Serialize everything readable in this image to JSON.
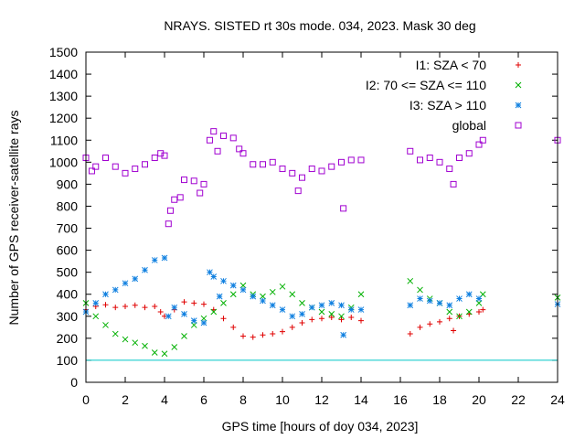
{
  "chart_data": {
    "type": "scatter",
    "title": "NRAYS. SISTED rt 30s mode. 034, 2023. Mask 30 deg",
    "xlabel": "GPS time [hours of doy 034, 2023]",
    "ylabel": "Number of GPS receiver-satellite rays",
    "xlim": [
      0,
      24
    ],
    "ylim": [
      0,
      1500
    ],
    "xticks": [
      0,
      2,
      4,
      6,
      8,
      10,
      12,
      14,
      16,
      18,
      20,
      22,
      24
    ],
    "yticks": [
      0,
      100,
      200,
      300,
      400,
      500,
      600,
      700,
      800,
      900,
      1000,
      1100,
      1200,
      1300,
      1400,
      1500
    ],
    "threshold_line": {
      "y": 100,
      "color": "#00c8c8"
    },
    "legend_position": "top-right",
    "series": [
      {
        "name": "I1: SZA < 70",
        "marker": "+",
        "color": "#e00000",
        "points": [
          [
            0,
            330
          ],
          [
            0.5,
            345
          ],
          [
            1,
            352
          ],
          [
            1.5,
            340
          ],
          [
            2,
            345
          ],
          [
            2.5,
            350
          ],
          [
            3,
            340
          ],
          [
            3.5,
            345
          ],
          [
            3.8,
            320
          ],
          [
            4,
            300
          ],
          [
            4.5,
            330
          ],
          [
            5,
            365
          ],
          [
            5.5,
            360
          ],
          [
            6,
            355
          ],
          [
            6.5,
            330
          ],
          [
            7,
            290
          ],
          [
            7.5,
            250
          ],
          [
            8,
            210
          ],
          [
            8.5,
            205
          ],
          [
            9,
            215
          ],
          [
            9.5,
            220
          ],
          [
            10,
            230
          ],
          [
            10.5,
            250
          ],
          [
            11,
            270
          ],
          [
            11.5,
            285
          ],
          [
            12,
            290
          ],
          [
            12.5,
            295
          ],
          [
            13,
            285
          ],
          [
            13.5,
            295
          ],
          [
            14,
            280
          ],
          [
            16.5,
            220
          ],
          [
            17,
            250
          ],
          [
            17.5,
            265
          ],
          [
            18,
            275
          ],
          [
            18.5,
            290
          ],
          [
            18.7,
            235
          ],
          [
            19,
            300
          ],
          [
            19.5,
            310
          ],
          [
            20,
            320
          ],
          [
            20.2,
            330
          ]
        ]
      },
      {
        "name": "I2: 70 <= SZA <= 110",
        "marker": "x",
        "color": "#00b000",
        "points": [
          [
            0,
            360
          ],
          [
            0.5,
            300
          ],
          [
            1,
            260
          ],
          [
            1.5,
            220
          ],
          [
            2,
            195
          ],
          [
            2.5,
            180
          ],
          [
            3,
            165
          ],
          [
            3.5,
            135
          ],
          [
            4,
            130
          ],
          [
            4.5,
            160
          ],
          [
            5,
            210
          ],
          [
            5.5,
            260
          ],
          [
            6,
            290
          ],
          [
            6.5,
            320
          ],
          [
            7,
            360
          ],
          [
            7.5,
            400
          ],
          [
            8,
            440
          ],
          [
            8.5,
            400
          ],
          [
            9,
            390
          ],
          [
            9.5,
            410
          ],
          [
            10,
            435
          ],
          [
            10.5,
            400
          ],
          [
            11,
            360
          ],
          [
            11.5,
            340
          ],
          [
            12,
            320
          ],
          [
            12.5,
            310
          ],
          [
            13,
            300
          ],
          [
            13.5,
            340
          ],
          [
            14,
            400
          ],
          [
            16.5,
            460
          ],
          [
            17,
            420
          ],
          [
            17.5,
            380
          ],
          [
            18,
            360
          ],
          [
            18.5,
            320
          ],
          [
            19,
            300
          ],
          [
            19.5,
            320
          ],
          [
            20,
            360
          ],
          [
            20.2,
            400
          ],
          [
            24,
            385
          ]
        ]
      },
      {
        "name": "I3: SZA > 110",
        "marker": "*",
        "color": "#1080e0",
        "points": [
          [
            0,
            320
          ],
          [
            0.5,
            360
          ],
          [
            1,
            400
          ],
          [
            1.5,
            420
          ],
          [
            2,
            450
          ],
          [
            2.5,
            470
          ],
          [
            3,
            510
          ],
          [
            3.5,
            555
          ],
          [
            4,
            565
          ],
          [
            4.2,
            300
          ],
          [
            4.5,
            340
          ],
          [
            5,
            310
          ],
          [
            5.5,
            280
          ],
          [
            6,
            270
          ],
          [
            6.3,
            500
          ],
          [
            6.5,
            480
          ],
          [
            6.8,
            390
          ],
          [
            7,
            460
          ],
          [
            7.5,
            440
          ],
          [
            8,
            420
          ],
          [
            8.5,
            390
          ],
          [
            9,
            370
          ],
          [
            9.5,
            350
          ],
          [
            10,
            330
          ],
          [
            10.5,
            300
          ],
          [
            11,
            310
          ],
          [
            11.5,
            340
          ],
          [
            12,
            350
          ],
          [
            12.5,
            360
          ],
          [
            13,
            350
          ],
          [
            13.1,
            215
          ],
          [
            13.5,
            330
          ],
          [
            14,
            330
          ],
          [
            16.5,
            350
          ],
          [
            17,
            380
          ],
          [
            17.5,
            370
          ],
          [
            18,
            360
          ],
          [
            18.5,
            350
          ],
          [
            19,
            380
          ],
          [
            19.5,
            400
          ],
          [
            20,
            380
          ],
          [
            24,
            355
          ]
        ]
      },
      {
        "name": "global",
        "marker": "square",
        "color": "#a000d0",
        "points": [
          [
            0,
            1020
          ],
          [
            0.3,
            960
          ],
          [
            0.5,
            980
          ],
          [
            1,
            1020
          ],
          [
            1.5,
            980
          ],
          [
            2,
            950
          ],
          [
            2.5,
            970
          ],
          [
            3,
            990
          ],
          [
            3.5,
            1020
          ],
          [
            3.8,
            1040
          ],
          [
            4,
            1030
          ],
          [
            4.2,
            720
          ],
          [
            4.3,
            780
          ],
          [
            4.5,
            830
          ],
          [
            4.8,
            840
          ],
          [
            5,
            920
          ],
          [
            5.5,
            915
          ],
          [
            5.8,
            860
          ],
          [
            6,
            900
          ],
          [
            6.3,
            1100
          ],
          [
            6.5,
            1140
          ],
          [
            6.7,
            1050
          ],
          [
            7,
            1120
          ],
          [
            7.5,
            1110
          ],
          [
            7.8,
            1060
          ],
          [
            8,
            1040
          ],
          [
            8.5,
            990
          ],
          [
            9,
            990
          ],
          [
            9.5,
            1000
          ],
          [
            10,
            970
          ],
          [
            10.5,
            950
          ],
          [
            10.8,
            870
          ],
          [
            11,
            930
          ],
          [
            11.5,
            970
          ],
          [
            12,
            960
          ],
          [
            12.5,
            980
          ],
          [
            13,
            1000
          ],
          [
            13.1,
            790
          ],
          [
            13.5,
            1010
          ],
          [
            14,
            1010
          ],
          [
            16.5,
            1050
          ],
          [
            17,
            1010
          ],
          [
            17.5,
            1020
          ],
          [
            18,
            1000
          ],
          [
            18.5,
            970
          ],
          [
            18.7,
            900
          ],
          [
            19,
            1020
          ],
          [
            19.5,
            1040
          ],
          [
            20,
            1080
          ],
          [
            20.2,
            1100
          ],
          [
            24,
            1100
          ]
        ]
      }
    ]
  }
}
